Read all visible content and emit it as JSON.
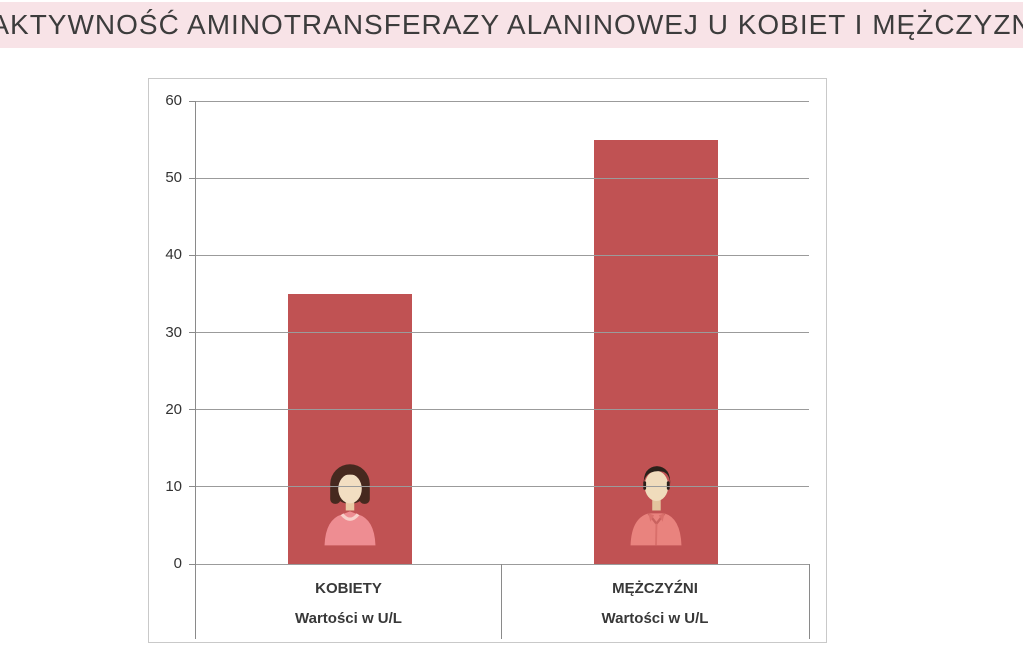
{
  "page": {
    "title": "AKTYWNOŚĆ AMINOTRANSFERAZY ALANINOWEJ U KOBIET I MĘŻCZYZN"
  },
  "chart_data": {
    "type": "bar",
    "title": "AKTYWNOŚĆ AMINOTRANSFERAZY ALANINOWEJ U KOBIET I MĘŻCZYZN",
    "categories": [
      "KOBIETY",
      "MĘŻCZYŹNI"
    ],
    "values": [
      35,
      55
    ],
    "sublabels": [
      "Wartości w U/L",
      "Wartości w U/L"
    ],
    "unit": "U/L",
    "xlabel": "",
    "ylabel": "",
    "ylim": [
      0,
      60
    ],
    "yticks": [
      0,
      10,
      20,
      30,
      40,
      50,
      60
    ],
    "grid": true,
    "legend": "none",
    "icons": [
      "woman-avatar-icon",
      "man-avatar-icon"
    ]
  },
  "colors": {
    "title_bg": "#F8E3E7",
    "bar": "#C05253",
    "gridline": "#9B9B9B",
    "axis": "#8A8A8A",
    "frame_border": "#C9C9C9",
    "label_text": "#383838"
  }
}
